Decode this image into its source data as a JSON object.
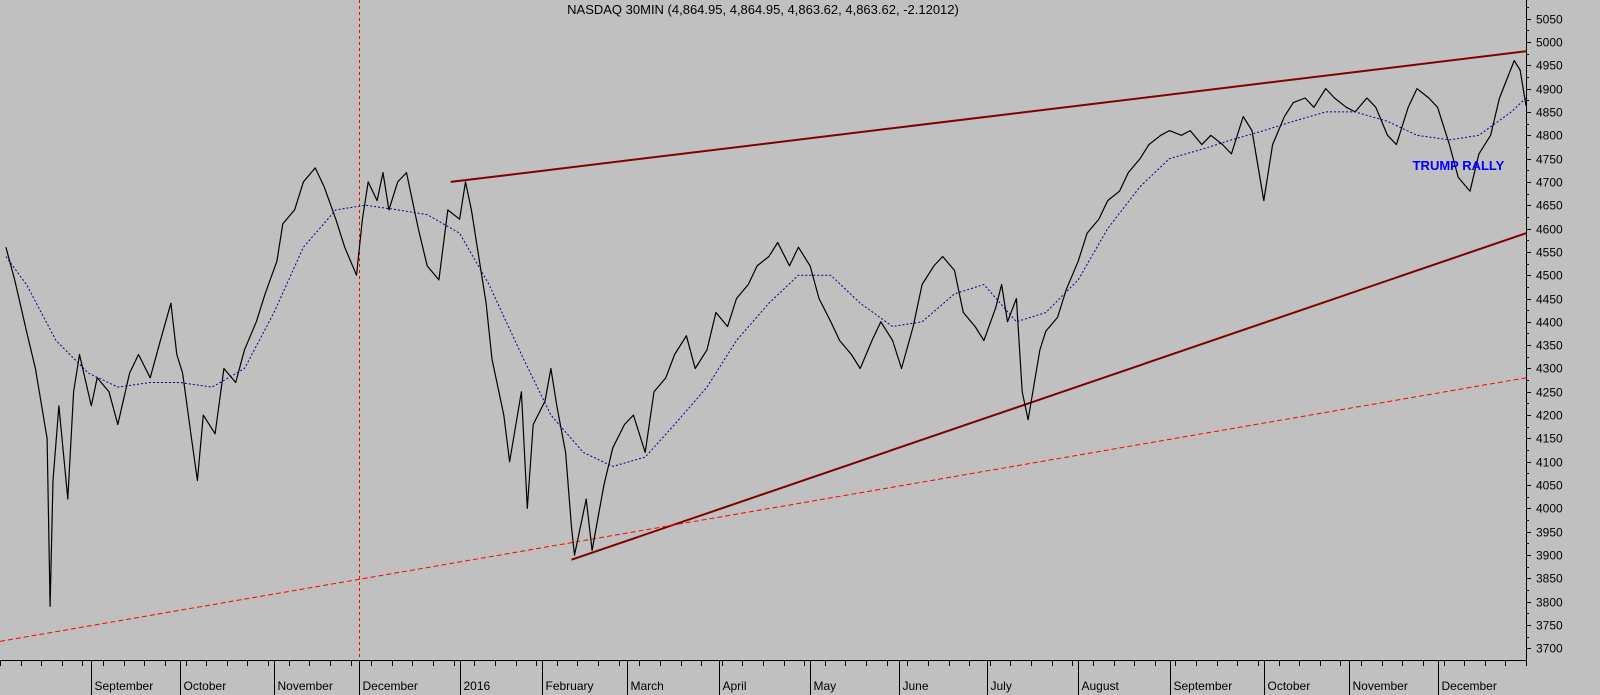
{
  "chart_data": {
    "type": "line",
    "title": "NASDAQ 30MIN (4,864.95, 4,864.95, 4,863.62, 4,863.62, -2.12012)",
    "xlabel": "",
    "ylabel": "",
    "ylim": [
      3675,
      5090
    ],
    "y_ticks": [
      3700,
      3750,
      3800,
      3850,
      3900,
      3950,
      4000,
      4050,
      4100,
      4150,
      4200,
      4250,
      4300,
      4350,
      4400,
      4450,
      4500,
      4550,
      4600,
      4650,
      4700,
      4750,
      4800,
      4850,
      4900,
      4950,
      5000,
      5050
    ],
    "x_range": [
      "2015-08-01",
      "2016-12-31"
    ],
    "x_ticks": [
      {
        "label": "September",
        "date": "2015-09-01"
      },
      {
        "label": "October",
        "date": "2015-10-01"
      },
      {
        "label": "November",
        "date": "2015-11-02"
      },
      {
        "label": "December",
        "date": "2015-12-01"
      },
      {
        "label": "2016",
        "date": "2016-01-04"
      },
      {
        "label": "February",
        "date": "2016-02-01"
      },
      {
        "label": "March",
        "date": "2016-03-01"
      },
      {
        "label": "April",
        "date": "2016-04-01"
      },
      {
        "label": "May",
        "date": "2016-05-02"
      },
      {
        "label": "June",
        "date": "2016-06-01"
      },
      {
        "label": "July",
        "date": "2016-07-01"
      },
      {
        "label": "August",
        "date": "2016-08-01"
      },
      {
        "label": "September",
        "date": "2016-09-01"
      },
      {
        "label": "October",
        "date": "2016-10-03"
      },
      {
        "label": "November",
        "date": "2016-11-01"
      },
      {
        "label": "December",
        "date": "2016-12-01"
      }
    ],
    "grid": false,
    "series": [
      {
        "style": "price",
        "color": "#000000",
        "points": [
          [
            "2015-08-03",
            4560
          ],
          [
            "2015-08-06",
            4490
          ],
          [
            "2015-08-10",
            4380
          ],
          [
            "2015-08-13",
            4300
          ],
          [
            "2015-08-17",
            4150
          ],
          [
            "2015-08-18",
            3790
          ],
          [
            "2015-08-19",
            4060
          ],
          [
            "2015-08-21",
            4220
          ],
          [
            "2015-08-24",
            4020
          ],
          [
            "2015-08-26",
            4250
          ],
          [
            "2015-08-28",
            4330
          ],
          [
            "2015-09-01",
            4220
          ],
          [
            "2015-09-03",
            4280
          ],
          [
            "2015-09-07",
            4250
          ],
          [
            "2015-09-10",
            4180
          ],
          [
            "2015-09-14",
            4290
          ],
          [
            "2015-09-17",
            4330
          ],
          [
            "2015-09-21",
            4280
          ],
          [
            "2015-09-24",
            4350
          ],
          [
            "2015-09-28",
            4440
          ],
          [
            "2015-09-30",
            4330
          ],
          [
            "2015-10-02",
            4290
          ],
          [
            "2015-10-05",
            4150
          ],
          [
            "2015-10-07",
            4060
          ],
          [
            "2015-10-09",
            4200
          ],
          [
            "2015-10-13",
            4160
          ],
          [
            "2015-10-16",
            4300
          ],
          [
            "2015-10-20",
            4270
          ],
          [
            "2015-10-23",
            4340
          ],
          [
            "2015-10-27",
            4400
          ],
          [
            "2015-10-30",
            4460
          ],
          [
            "2015-11-03",
            4530
          ],
          [
            "2015-11-05",
            4610
          ],
          [
            "2015-11-09",
            4640
          ],
          [
            "2015-11-12",
            4700
          ],
          [
            "2015-11-16",
            4730
          ],
          [
            "2015-11-19",
            4690
          ],
          [
            "2015-11-23",
            4620
          ],
          [
            "2015-11-26",
            4560
          ],
          [
            "2015-11-30",
            4500
          ],
          [
            "2015-12-02",
            4620
          ],
          [
            "2015-12-04",
            4700
          ],
          [
            "2015-12-07",
            4660
          ],
          [
            "2015-12-09",
            4720
          ],
          [
            "2015-12-11",
            4640
          ],
          [
            "2015-12-14",
            4700
          ],
          [
            "2015-12-17",
            4720
          ],
          [
            "2015-12-21",
            4600
          ],
          [
            "2015-12-24",
            4520
          ],
          [
            "2015-12-28",
            4490
          ],
          [
            "2015-12-31",
            4640
          ],
          [
            "2016-01-04",
            4620
          ],
          [
            "2016-01-06",
            4700
          ],
          [
            "2016-01-08",
            4640
          ],
          [
            "2016-01-11",
            4520
          ],
          [
            "2016-01-13",
            4440
          ],
          [
            "2016-01-15",
            4320
          ],
          [
            "2016-01-19",
            4200
          ],
          [
            "2016-01-21",
            4100
          ],
          [
            "2016-01-25",
            4250
          ],
          [
            "2016-01-27",
            4000
          ],
          [
            "2016-01-29",
            4180
          ],
          [
            "2016-02-02",
            4230
          ],
          [
            "2016-02-04",
            4300
          ],
          [
            "2016-02-06",
            4220
          ],
          [
            "2016-02-09",
            4120
          ],
          [
            "2016-02-11",
            3960
          ],
          [
            "2016-02-12",
            3900
          ],
          [
            "2016-02-16",
            4020
          ],
          [
            "2016-02-18",
            3910
          ],
          [
            "2016-02-22",
            4050
          ],
          [
            "2016-02-25",
            4130
          ],
          [
            "2016-02-29",
            4180
          ],
          [
            "2016-03-03",
            4200
          ],
          [
            "2016-03-07",
            4120
          ],
          [
            "2016-03-10",
            4250
          ],
          [
            "2016-03-14",
            4280
          ],
          [
            "2016-03-17",
            4330
          ],
          [
            "2016-03-21",
            4370
          ],
          [
            "2016-03-24",
            4300
          ],
          [
            "2016-03-28",
            4340
          ],
          [
            "2016-03-31",
            4420
          ],
          [
            "2016-04-04",
            4390
          ],
          [
            "2016-04-07",
            4450
          ],
          [
            "2016-04-11",
            4480
          ],
          [
            "2016-04-14",
            4520
          ],
          [
            "2016-04-18",
            4540
          ],
          [
            "2016-04-21",
            4570
          ],
          [
            "2016-04-25",
            4520
          ],
          [
            "2016-04-28",
            4560
          ],
          [
            "2016-05-02",
            4520
          ],
          [
            "2016-05-05",
            4450
          ],
          [
            "2016-05-09",
            4400
          ],
          [
            "2016-05-12",
            4360
          ],
          [
            "2016-05-16",
            4330
          ],
          [
            "2016-05-19",
            4300
          ],
          [
            "2016-05-23",
            4360
          ],
          [
            "2016-05-26",
            4400
          ],
          [
            "2016-05-30",
            4360
          ],
          [
            "2016-06-02",
            4300
          ],
          [
            "2016-06-06",
            4390
          ],
          [
            "2016-06-09",
            4480
          ],
          [
            "2016-06-13",
            4520
          ],
          [
            "2016-06-16",
            4540
          ],
          [
            "2016-06-20",
            4510
          ],
          [
            "2016-06-23",
            4420
          ],
          [
            "2016-06-27",
            4390
          ],
          [
            "2016-06-30",
            4360
          ],
          [
            "2016-07-04",
            4430
          ],
          [
            "2016-07-06",
            4480
          ],
          [
            "2016-07-08",
            4400
          ],
          [
            "2016-07-11",
            4450
          ],
          [
            "2016-07-13",
            4250
          ],
          [
            "2016-07-15",
            4190
          ],
          [
            "2016-07-19",
            4340
          ],
          [
            "2016-07-21",
            4380
          ],
          [
            "2016-07-25",
            4410
          ],
          [
            "2016-07-28",
            4470
          ],
          [
            "2016-08-01",
            4530
          ],
          [
            "2016-08-04",
            4590
          ],
          [
            "2016-08-08",
            4620
          ],
          [
            "2016-08-11",
            4660
          ],
          [
            "2016-08-15",
            4680
          ],
          [
            "2016-08-18",
            4720
          ],
          [
            "2016-08-22",
            4750
          ],
          [
            "2016-08-25",
            4780
          ],
          [
            "2016-08-29",
            4800
          ],
          [
            "2016-09-01",
            4810
          ],
          [
            "2016-09-05",
            4800
          ],
          [
            "2016-09-08",
            4810
          ],
          [
            "2016-09-12",
            4780
          ],
          [
            "2016-09-15",
            4800
          ],
          [
            "2016-09-19",
            4780
          ],
          [
            "2016-09-22",
            4760
          ],
          [
            "2016-09-26",
            4840
          ],
          [
            "2016-09-29",
            4810
          ],
          [
            "2016-10-03",
            4660
          ],
          [
            "2016-10-06",
            4780
          ],
          [
            "2016-10-10",
            4840
          ],
          [
            "2016-10-13",
            4870
          ],
          [
            "2016-10-17",
            4880
          ],
          [
            "2016-10-20",
            4860
          ],
          [
            "2016-10-24",
            4900
          ],
          [
            "2016-10-27",
            4880
          ],
          [
            "2016-10-31",
            4860
          ],
          [
            "2016-11-03",
            4850
          ],
          [
            "2016-11-07",
            4880
          ],
          [
            "2016-11-10",
            4860
          ],
          [
            "2016-11-14",
            4800
          ],
          [
            "2016-11-17",
            4780
          ],
          [
            "2016-11-21",
            4860
          ],
          [
            "2016-11-24",
            4900
          ],
          [
            "2016-11-28",
            4880
          ],
          [
            "2016-12-01",
            4860
          ],
          [
            "2016-12-05",
            4780
          ],
          [
            "2016-12-08",
            4710
          ],
          [
            "2016-12-12",
            4680
          ],
          [
            "2016-12-15",
            4760
          ],
          [
            "2016-12-19",
            4800
          ],
          [
            "2016-12-22",
            4880
          ],
          [
            "2016-12-27",
            4960
          ],
          [
            "2016-12-29",
            4940
          ],
          [
            "2016-12-31",
            4863.62
          ]
        ]
      },
      {
        "style": "moving-average",
        "color": "#00008b",
        "points": [
          [
            "2015-08-03",
            4540
          ],
          [
            "2015-08-10",
            4480
          ],
          [
            "2015-08-20",
            4360
          ],
          [
            "2015-08-31",
            4290
          ],
          [
            "2015-09-10",
            4260
          ],
          [
            "2015-09-21",
            4270
          ],
          [
            "2015-10-01",
            4270
          ],
          [
            "2015-10-12",
            4260
          ],
          [
            "2015-10-23",
            4300
          ],
          [
            "2015-11-02",
            4420
          ],
          [
            "2015-11-12",
            4560
          ],
          [
            "2015-11-23",
            4640
          ],
          [
            "2015-12-03",
            4650
          ],
          [
            "2015-12-14",
            4640
          ],
          [
            "2015-12-24",
            4630
          ],
          [
            "2016-01-04",
            4590
          ],
          [
            "2016-01-14",
            4480
          ],
          [
            "2016-01-25",
            4330
          ],
          [
            "2016-02-04",
            4200
          ],
          [
            "2016-02-15",
            4120
          ],
          [
            "2016-02-25",
            4090
          ],
          [
            "2016-03-07",
            4110
          ],
          [
            "2016-03-17",
            4180
          ],
          [
            "2016-03-28",
            4260
          ],
          [
            "2016-04-07",
            4360
          ],
          [
            "2016-04-18",
            4440
          ],
          [
            "2016-04-28",
            4500
          ],
          [
            "2016-05-09",
            4500
          ],
          [
            "2016-05-19",
            4440
          ],
          [
            "2016-05-30",
            4390
          ],
          [
            "2016-06-09",
            4400
          ],
          [
            "2016-06-20",
            4460
          ],
          [
            "2016-06-30",
            4480
          ],
          [
            "2016-07-11",
            4400
          ],
          [
            "2016-07-21",
            4420
          ],
          [
            "2016-08-01",
            4490
          ],
          [
            "2016-08-11",
            4600
          ],
          [
            "2016-08-22",
            4690
          ],
          [
            "2016-09-01",
            4750
          ],
          [
            "2016-09-12",
            4770
          ],
          [
            "2016-09-22",
            4790
          ],
          [
            "2016-10-03",
            4810
          ],
          [
            "2016-10-13",
            4830
          ],
          [
            "2016-10-24",
            4850
          ],
          [
            "2016-11-03",
            4850
          ],
          [
            "2016-11-14",
            4830
          ],
          [
            "2016-11-24",
            4800
          ],
          [
            "2016-12-05",
            4790
          ],
          [
            "2016-12-15",
            4800
          ],
          [
            "2016-12-26",
            4850
          ],
          [
            "2016-12-31",
            4880
          ]
        ]
      }
    ],
    "trendlines": [
      {
        "style": "solid",
        "color": "#800000",
        "from": [
          "2016-01-01",
          4700
        ],
        "to": [
          "2016-12-31",
          4980
        ]
      },
      {
        "style": "solid",
        "color": "#800000",
        "from": [
          "2016-02-11",
          3890
        ],
        "to": [
          "2016-12-31",
          4590
        ]
      },
      {
        "style": "dashed",
        "color": "#ff0000",
        "from": [
          "2015-08-01",
          3715
        ],
        "to": [
          "2016-12-31",
          4280
        ]
      }
    ],
    "vertical_markers": [
      {
        "style": "dashed",
        "color": "#ff0000",
        "date": "2015-12-01"
      }
    ],
    "annotations": [
      {
        "text": "TRUMP RALLY",
        "date": "2016-12-01",
        "value": 4725,
        "color": "#0000ff"
      }
    ]
  }
}
